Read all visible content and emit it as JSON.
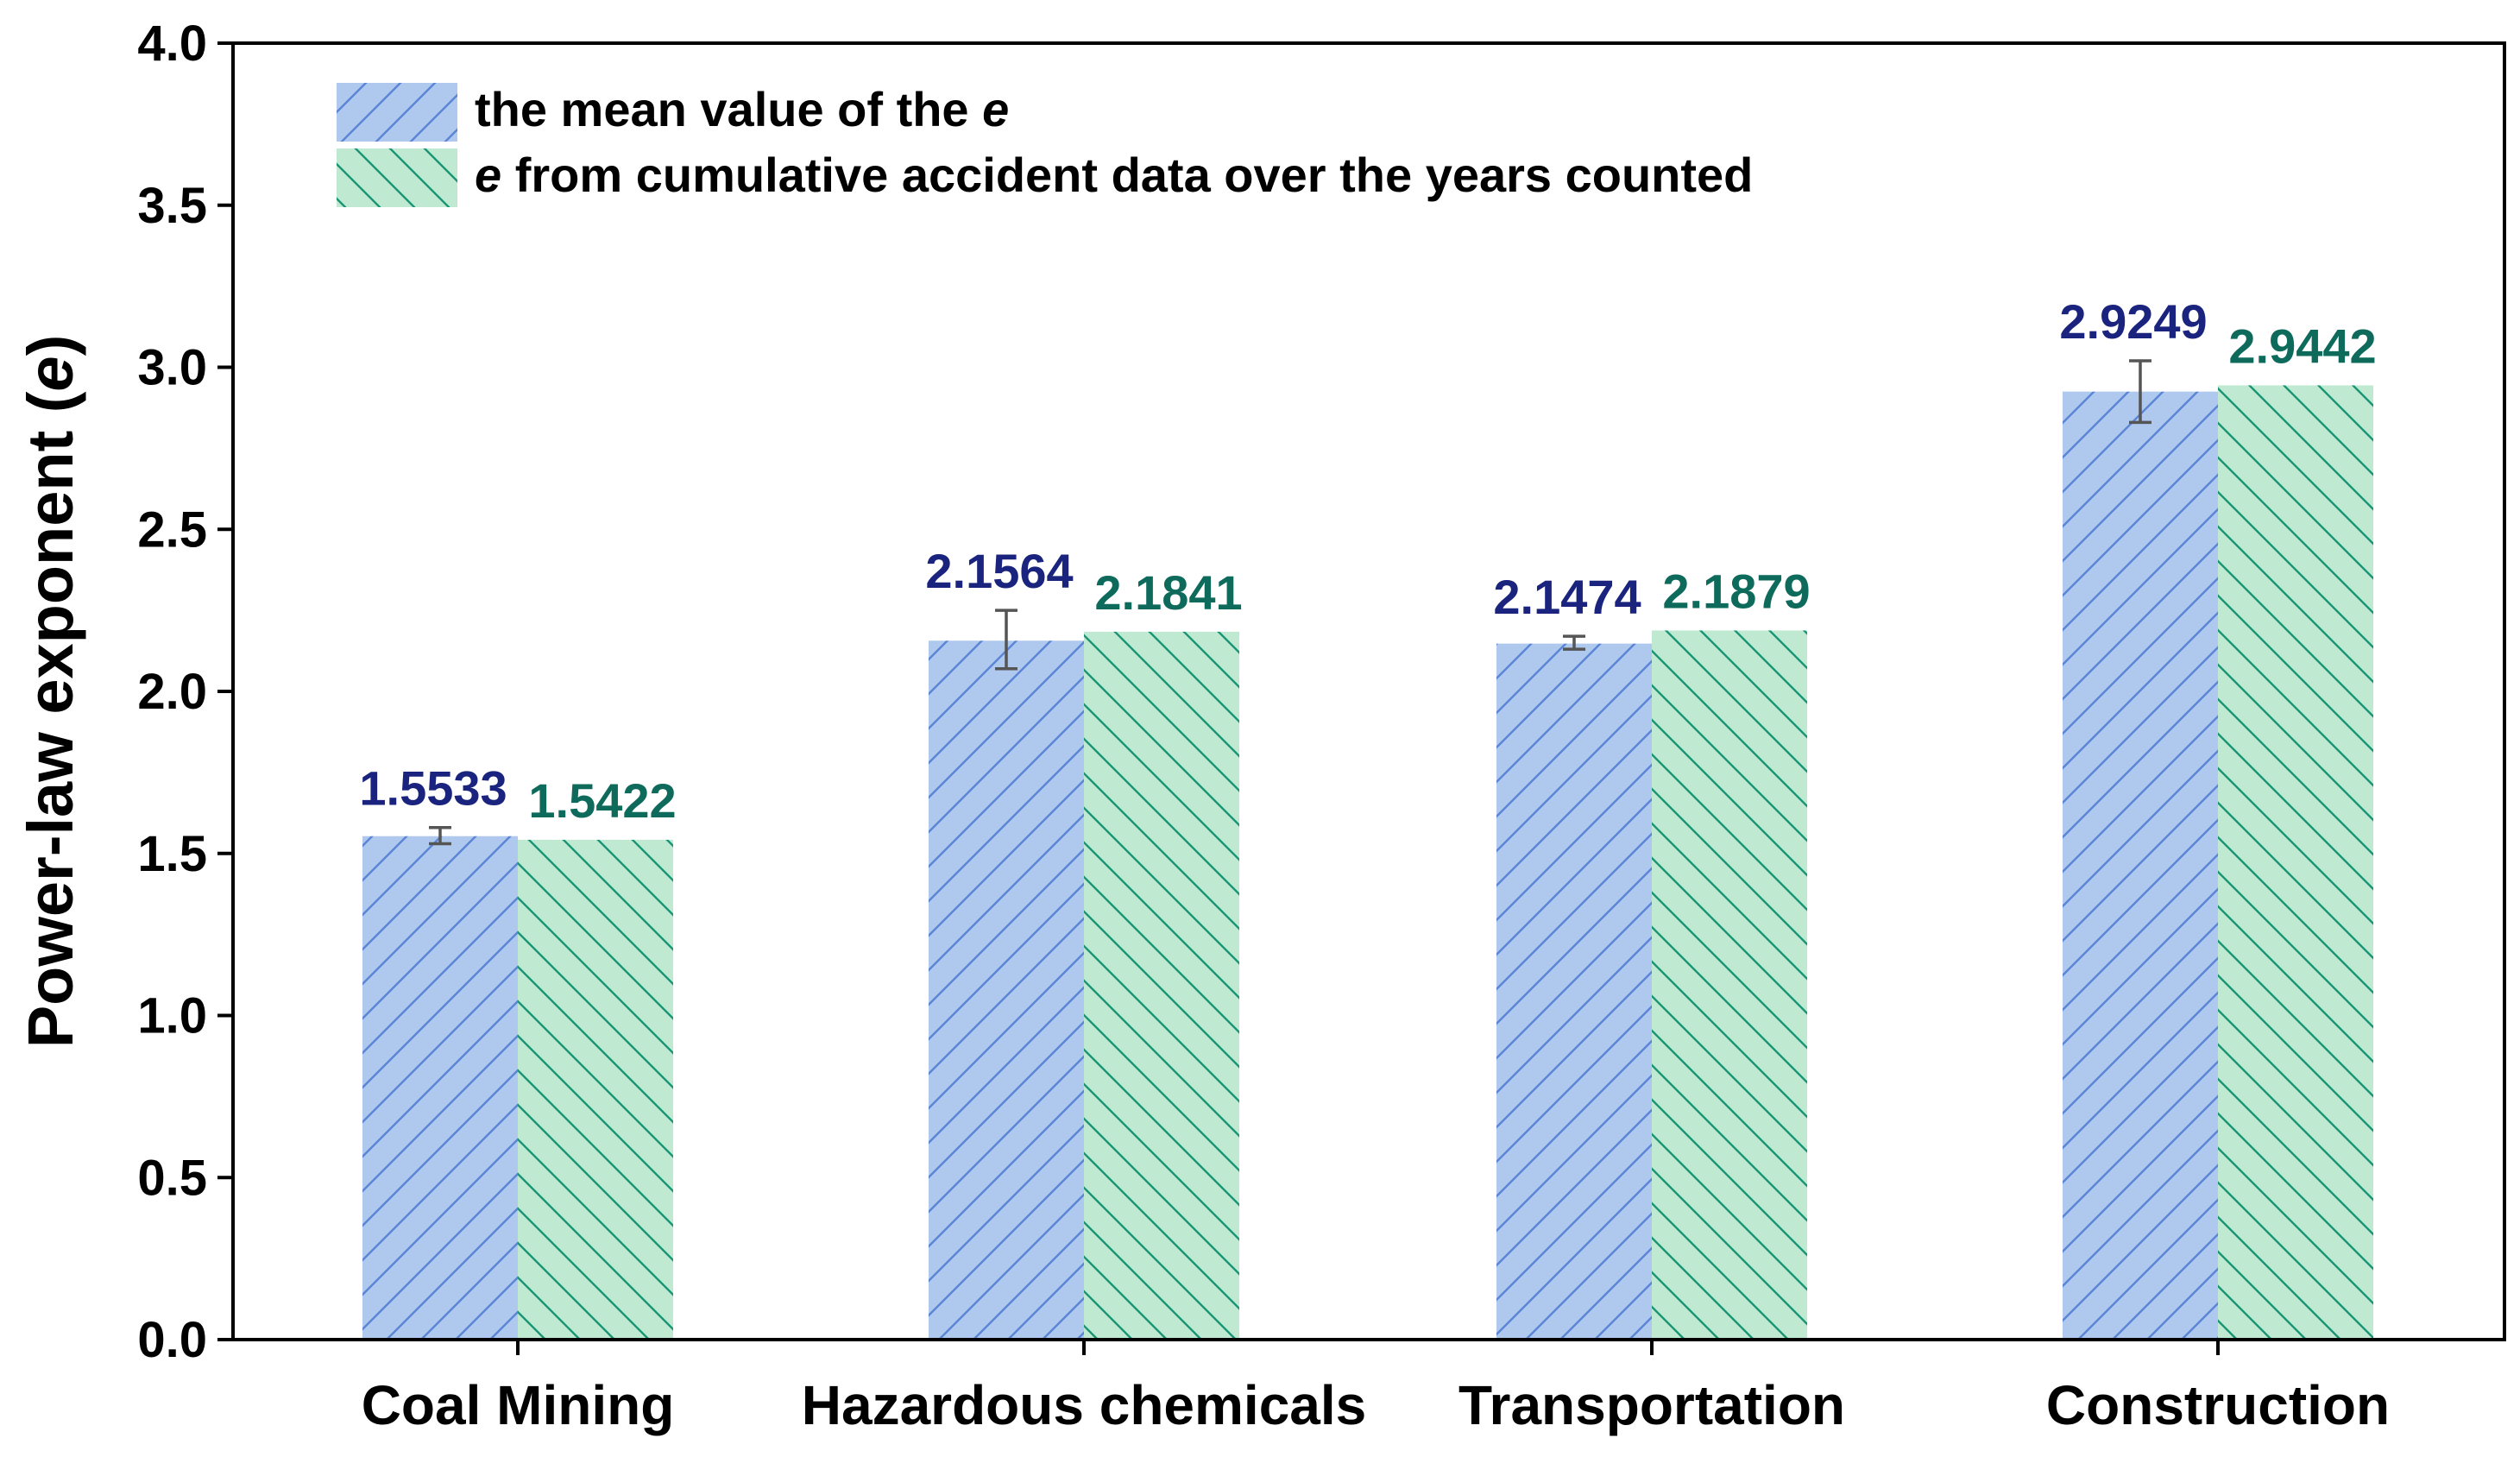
{
  "chart_data": {
    "type": "bar",
    "categories": [
      "Coal Mining",
      "Hazardous chemicals",
      "Transportation",
      "Construction"
    ],
    "series": [
      {
        "name": "the mean value of the ",
        "name_italic": "e",
        "values": [
          1.5533,
          2.1564,
          2.1474,
          2.9249
        ],
        "labels": [
          "1.5533",
          "2.1564",
          "2.1474",
          "2.9249"
        ],
        "error_low": [
          1.53,
          2.07,
          2.13,
          2.83
        ],
        "error_high": [
          1.58,
          2.25,
          2.17,
          3.02
        ],
        "fill_color": "#aec8ee",
        "hatch_color": "#5b86d6",
        "label_color": "#1a237e"
      },
      {
        "name": " from cumulative accident data over the years counted",
        "name_italic": "e",
        "values": [
          1.5422,
          2.1841,
          2.1879,
          2.9442
        ],
        "labels": [
          "1.5422",
          "2.1841",
          "2.1879",
          "2.9442"
        ],
        "fill_color": "#bfe9d0",
        "hatch_color": "#1a9677",
        "label_color": "#0e6b5c"
      }
    ],
    "ylabel_prefix": "Power-law exponent (",
    "ylabel_italic": "e",
    "ylabel_suffix": ")",
    "xlabel": "",
    "ylim": [
      0.0,
      4.0
    ],
    "yticks": [
      "0.0",
      "0.5",
      "1.0",
      "1.5",
      "2.0",
      "2.5",
      "3.0",
      "3.5",
      "4.0"
    ],
    "legend_position": "top-left"
  }
}
